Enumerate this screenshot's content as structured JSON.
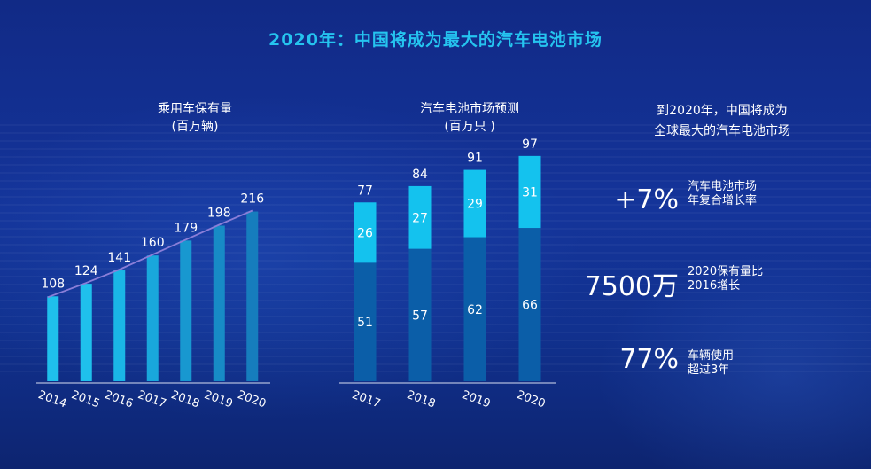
{
  "page_title": "2020年：中国将成为最大的汽车电池市场",
  "chart_data": [
    {
      "type": "bar",
      "title": "乘用车保有量\n(百万辆)",
      "title_lines": [
        "乘用车保有量",
        "(百万辆)"
      ],
      "categories": [
        "2014",
        "2015",
        "2016",
        "2017",
        "2018",
        "2019",
        "2020"
      ],
      "values": [
        108,
        124,
        141,
        160,
        179,
        198,
        216
      ],
      "ylim": [
        0,
        220
      ],
      "trend_line": true,
      "grid": false,
      "colors": [
        "#1fc0ec",
        "#1fc0ec",
        "#1ab6e6",
        "#19a7dc",
        "#1898d0",
        "#178bc6",
        "#167dbd"
      ]
    },
    {
      "type": "bar",
      "stacked": true,
      "title": "汽车电池市场预测\n(百万只 )",
      "title_lines": [
        "汽车电池市场预测",
        "(百万只 )"
      ],
      "categories": [
        "2017",
        "2018",
        "2019",
        "2020"
      ],
      "series": [
        {
          "values": [
            51,
            57,
            62,
            66
          ],
          "color": "#0b5ea8"
        },
        {
          "values": [
            26,
            27,
            29,
            31
          ],
          "color": "#14c2ee"
        }
      ],
      "totals": [
        77,
        84,
        91,
        97
      ],
      "ylim": [
        0,
        100
      ],
      "grid": false
    }
  ],
  "stats": {
    "title_lines": [
      "到2020年，中国将成为",
      "全球最大的汽车电池市场"
    ],
    "items": [
      {
        "big": "+7%",
        "desc_lines": [
          "汽车电池市场",
          "年复合增长率"
        ]
      },
      {
        "big": "7500万",
        "desc_lines": [
          "2020保有量比",
          "2016增长"
        ]
      },
      {
        "big": "77%",
        "desc_lines": [
          "车辆使用",
          "超过3年"
        ]
      }
    ]
  }
}
